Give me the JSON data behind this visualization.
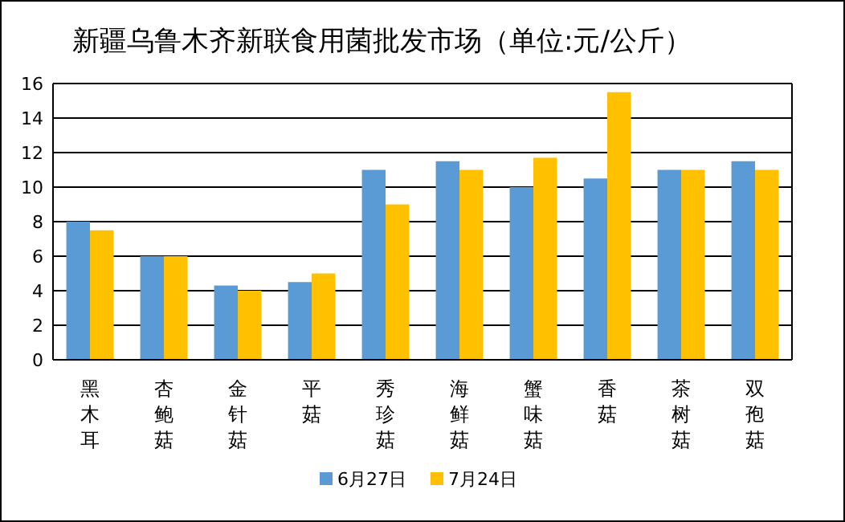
{
  "chart_data": {
    "type": "bar",
    "title": "新疆乌鲁木齐新联食用菌批发市场（单位:元/公斤）",
    "categories": [
      "黑木耳",
      "杏鲍菇",
      "金针菇",
      "平菇",
      "秀珍菇",
      "海鲜菇",
      "蟹味菇",
      "香菇",
      "茶树菇",
      "双孢菇"
    ],
    "series": [
      {
        "name": "6月27日",
        "color": "#5b9bd5",
        "values": [
          8,
          6,
          4.3,
          4.5,
          11,
          11.5,
          10,
          10.5,
          11,
          11.5
        ]
      },
      {
        "name": "7月24日",
        "color": "#ffc000",
        "values": [
          7.5,
          6,
          4,
          5,
          9,
          11,
          11.7,
          15.5,
          11,
          11
        ]
      }
    ],
    "ylim": [
      0,
      16
    ],
    "yticks": [
      0,
      2,
      4,
      6,
      8,
      10,
      12,
      14,
      16
    ],
    "grid": "y",
    "legend": "bottom"
  }
}
